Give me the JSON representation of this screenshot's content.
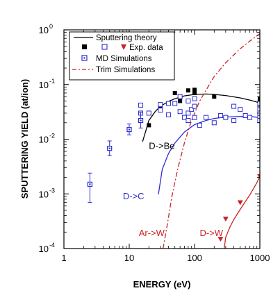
{
  "chart_data": {
    "type": "scatter",
    "xlabel": "ENERGY (eV)",
    "ylabel": "SPUTTERING YIELD (at/ion)",
    "xscale": "log",
    "yscale": "log",
    "xlim": [
      1,
      1000
    ],
    "ylim": [
      0.0001,
      1
    ],
    "x_ticks": [
      {
        "value": 1,
        "label": "1"
      },
      {
        "value": 10,
        "label": "10"
      },
      {
        "value": 100,
        "label": "100"
      },
      {
        "value": 1000,
        "label": "1000"
      }
    ],
    "y_ticks": [
      {
        "value": 0.0001,
        "base": "10",
        "exp": "-4"
      },
      {
        "value": 0.001,
        "base": "10",
        "exp": "-3"
      },
      {
        "value": 0.01,
        "base": "10",
        "exp": "-2"
      },
      {
        "value": 0.1,
        "base": "10",
        "exp": "-1"
      },
      {
        "value": 1,
        "base": "10",
        "exp": "0"
      }
    ],
    "legend": {
      "placement": "top-left",
      "entries": [
        {
          "text": "Sputtering theory",
          "marker": "line-solid",
          "color": "#000000"
        },
        {
          "text": "Exp. data",
          "marker": "square-filled+square-open+triangle-down",
          "color": "#000000"
        },
        {
          "text": "MD Simulations",
          "marker": "square-dot",
          "color": "#2a2ad4"
        },
        {
          "text": "Trim Simulations",
          "marker": "line-dashdot",
          "color": "#cc2222"
        }
      ]
    },
    "annotations": [
      {
        "text": "D->Be",
        "x": 20,
        "y": 0.0066,
        "color": "#000000"
      },
      {
        "text": "D->C",
        "x": 8,
        "y": 0.0008,
        "color": "#2a2ad4"
      },
      {
        "text": "Ar->W",
        "x": 14,
        "y": 0.00017,
        "color": "#cc2222"
      },
      {
        "text": "D->W",
        "x": 120,
        "y": 0.00017,
        "color": "#cc2222"
      }
    ],
    "series": [
      {
        "name": "D->Be theory",
        "kind": "line",
        "color": "#000000",
        "points": [
          [
            16,
            0.009
          ],
          [
            20,
            0.022
          ],
          [
            25,
            0.032
          ],
          [
            30,
            0.04
          ],
          [
            40,
            0.049
          ],
          [
            50,
            0.055
          ],
          [
            70,
            0.062
          ],
          [
            100,
            0.066
          ],
          [
            150,
            0.067
          ],
          [
            200,
            0.066
          ],
          [
            300,
            0.063
          ],
          [
            500,
            0.057
          ],
          [
            700,
            0.052
          ],
          [
            1000,
            0.046
          ]
        ]
      },
      {
        "name": "D->C theory",
        "kind": "line",
        "color": "#2a2ad4",
        "points": [
          [
            28,
            0.00098
          ],
          [
            32,
            0.0028
          ],
          [
            40,
            0.0055
          ],
          [
            50,
            0.0085
          ],
          [
            70,
            0.0135
          ],
          [
            100,
            0.0185
          ],
          [
            150,
            0.022
          ],
          [
            200,
            0.024
          ],
          [
            300,
            0.0255
          ],
          [
            500,
            0.026
          ],
          [
            700,
            0.026
          ],
          [
            1000,
            0.025
          ]
        ]
      },
      {
        "name": "D->W theory",
        "kind": "line",
        "color": "#cc2222",
        "points": [
          [
            285,
            0.0001
          ],
          [
            300,
            0.00016
          ],
          [
            350,
            0.00025
          ],
          [
            400,
            0.00034
          ],
          [
            500,
            0.00052
          ],
          [
            600,
            0.00072
          ],
          [
            700,
            0.00095
          ],
          [
            800,
            0.00125
          ],
          [
            900,
            0.0016
          ],
          [
            1000,
            0.0021
          ]
        ]
      },
      {
        "name": "Ar->W TRIM",
        "kind": "line-dashdot",
        "color": "#cc2222",
        "points": [
          [
            33,
            0.0001
          ],
          [
            38,
            0.00026
          ],
          [
            45,
            0.0009
          ],
          [
            55,
            0.0028
          ],
          [
            70,
            0.0085
          ],
          [
            90,
            0.022
          ],
          [
            120,
            0.05
          ],
          [
            160,
            0.09
          ],
          [
            200,
            0.14
          ],
          [
            300,
            0.25
          ],
          [
            500,
            0.45
          ],
          [
            700,
            0.62
          ],
          [
            1000,
            0.85
          ]
        ]
      },
      {
        "name": "Be exp. data",
        "kind": "filled-square",
        "color": "#000000",
        "points": [
          [
            20,
            0.018
          ],
          [
            30,
            0.04
          ],
          [
            50,
            0.07
          ],
          [
            60,
            0.05
          ],
          [
            80,
            0.078
          ],
          [
            100,
            0.07
          ],
          [
            100,
            0.08
          ],
          [
            200,
            0.06
          ],
          [
            1000,
            0.055
          ]
        ]
      },
      {
        "name": "C exp. data",
        "kind": "open-square",
        "color": "#2a2ad4",
        "points": [
          [
            15,
            0.042
          ],
          [
            15,
            0.03
          ],
          [
            20,
            0.03
          ],
          [
            30,
            0.043
          ],
          [
            30,
            0.034
          ],
          [
            40,
            0.045
          ],
          [
            40,
            0.028
          ],
          [
            50,
            0.045
          ],
          [
            60,
            0.06
          ],
          [
            60,
            0.032
          ],
          [
            70,
            0.025
          ],
          [
            80,
            0.05
          ],
          [
            80,
            0.03
          ],
          [
            80,
            0.022
          ],
          [
            90,
            0.035
          ],
          [
            100,
            0.025
          ],
          [
            100,
            0.04
          ],
          [
            100,
            0.055
          ],
          [
            120,
            0.018
          ],
          [
            150,
            0.025
          ],
          [
            200,
            0.02
          ],
          [
            250,
            0.027
          ],
          [
            300,
            0.025
          ],
          [
            400,
            0.04
          ],
          [
            400,
            0.022
          ],
          [
            500,
            0.035
          ],
          [
            600,
            0.027
          ],
          [
            700,
            0.025
          ],
          [
            1000,
            0.045
          ],
          [
            1000,
            0.035
          ],
          [
            1000,
            0.03
          ],
          [
            1000,
            0.025
          ],
          [
            1000,
            0.022
          ]
        ]
      },
      {
        "name": "W exp. data",
        "kind": "triangle-down",
        "color": "#cc2222",
        "points": [
          [
            250,
            0.00015
          ],
          [
            300,
            0.00035
          ],
          [
            500,
            0.0007
          ],
          [
            1000,
            0.0021
          ]
        ]
      },
      {
        "name": "MD simulations",
        "kind": "square-dot-errorbar",
        "color": "#2a2ad4",
        "points": [
          [
            2.5,
            0.0015,
            0.0007,
            0.0024
          ],
          [
            5,
            0.0068,
            0.005,
            0.0093
          ],
          [
            10,
            0.015,
            0.012,
            0.019
          ],
          [
            15,
            0.022,
            0.016,
            0.031
          ]
        ]
      }
    ]
  }
}
